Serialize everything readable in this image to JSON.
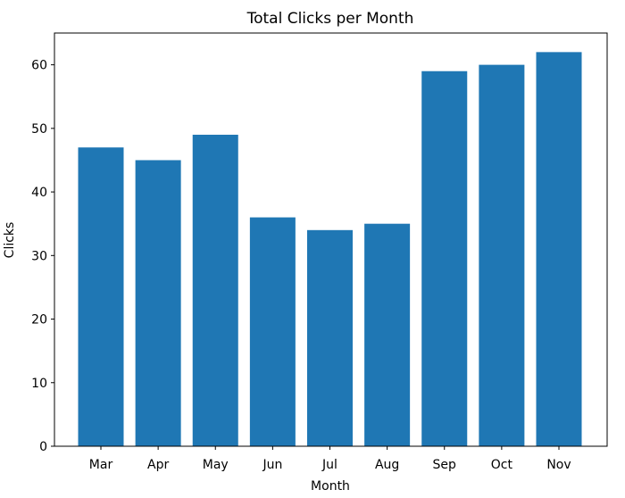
{
  "chart_data": {
    "type": "bar",
    "title": "Total Clicks per Month",
    "xlabel": "Month",
    "ylabel": "Clicks",
    "categories": [
      "Mar",
      "Apr",
      "May",
      "Jun",
      "Jul",
      "Aug",
      "Sep",
      "Oct",
      "Nov"
    ],
    "values": [
      47,
      45,
      49,
      36,
      34,
      35,
      59,
      60,
      62
    ],
    "ylim": [
      0,
      65
    ],
    "yticks": [
      0,
      10,
      20,
      30,
      40,
      50,
      60
    ],
    "grid": false,
    "bar_color": "#1f77b4"
  }
}
